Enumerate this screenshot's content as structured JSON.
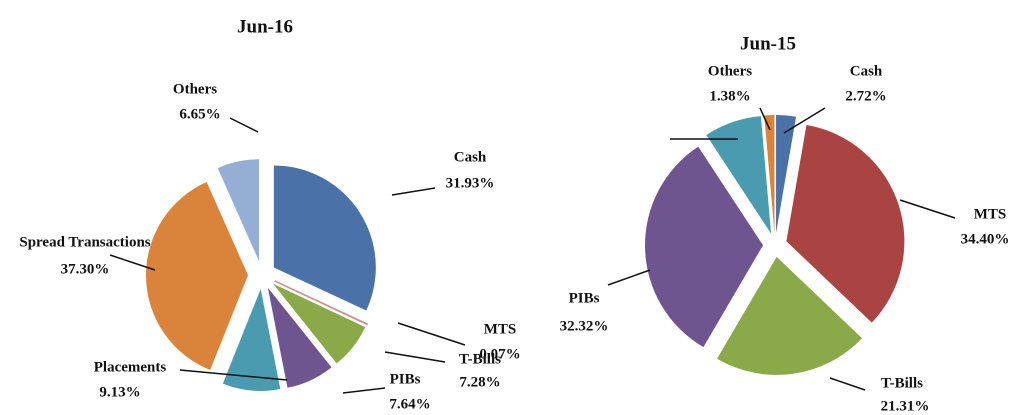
{
  "chart_data": [
    {
      "type": "pie",
      "title": "Jun-16",
      "categories": [
        "Cash",
        "MTS",
        "T-Bills",
        "PIBs",
        "Placements",
        "Spread Transactions",
        "Others"
      ],
      "values": [
        31.93,
        0.07,
        7.28,
        7.64,
        9.13,
        37.3,
        6.65
      ],
      "value_labels": [
        "31.93%",
        "0.07%",
        "7.28%",
        "7.64%",
        "9.13%",
        "37.30%",
        "6.65%"
      ],
      "colors": [
        "#4a72a8",
        "#d08f8f",
        "#8aaa4a",
        "#6f558f",
        "#4a9ab0",
        "#d9843a",
        "#95aed3"
      ]
    },
    {
      "type": "pie",
      "title": "Jun-15",
      "categories": [
        "Cash",
        "MTS",
        "T-Bills",
        "PIBs",
        null,
        "Others"
      ],
      "values": [
        2.72,
        34.4,
        21.31,
        32.32,
        7.87,
        1.38
      ],
      "value_labels": [
        "2.72%",
        "34.40%",
        "21.31%",
        "32.32%",
        null,
        "1.38%"
      ],
      "colors": [
        "#4a72a8",
        "#a94442",
        "#8aaa4a",
        "#6f558f",
        "#4a9ab0",
        "#d9843a"
      ]
    }
  ]
}
